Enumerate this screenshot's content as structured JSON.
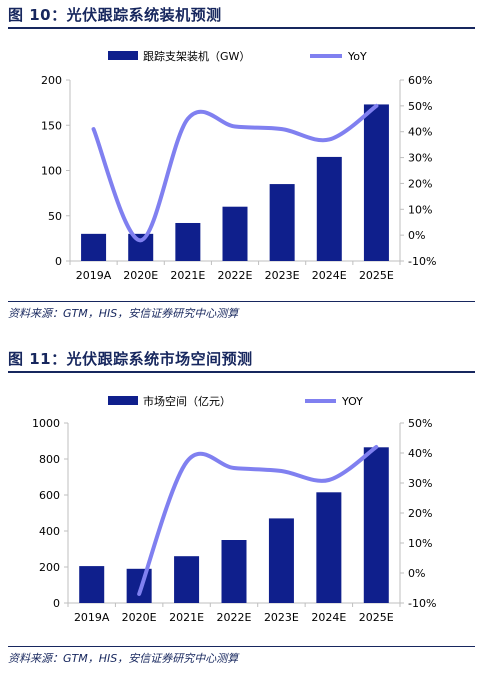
{
  "figures": [
    {
      "title": "图 10：光伏跟踪系统装机预测",
      "source": "资料来源：GTM，HIS，安信证券研究中心测算",
      "chart_data": {
        "type": "bar",
        "categories": [
          "2019A",
          "2020E",
          "2021E",
          "2022E",
          "2023E",
          "2024E",
          "2025E"
        ],
        "series": [
          {
            "name": "跟踪支架装机（GW）",
            "type": "bar",
            "axis": "left",
            "values": [
              30,
              30,
              42,
              60,
              85,
              115,
              173
            ]
          },
          {
            "name": "YoY",
            "type": "line",
            "axis": "right",
            "values": [
              0.41,
              -0.02,
              0.45,
              0.42,
              0.41,
              0.37,
              0.5
            ]
          }
        ],
        "y_left": {
          "min": 0,
          "max": 200,
          "ticks": [
            "0",
            "50",
            "100",
            "150",
            "200"
          ]
        },
        "y_right": {
          "min": -0.1,
          "max": 0.6,
          "ticks": [
            "-10%",
            "0%",
            "10%",
            "20%",
            "30%",
            "40%",
            "50%",
            "60%"
          ]
        },
        "grid": false,
        "legend": "top"
      }
    },
    {
      "title": "图 11：光伏跟踪系统市场空间预测",
      "source": "资料来源：GTM，HIS，安信证券研究中心测算",
      "chart_data": {
        "type": "bar",
        "categories": [
          "2019A",
          "2020E",
          "2021E",
          "2022E",
          "2023E",
          "2024E",
          "2025E"
        ],
        "series": [
          {
            "name": "市场空间（亿元）",
            "type": "bar",
            "axis": "left",
            "values": [
              205,
              190,
              260,
              350,
              470,
              615,
              865
            ]
          },
          {
            "name": "YOY",
            "type": "line",
            "axis": "right",
            "values": [
              null,
              -0.07,
              0.37,
              0.35,
              0.34,
              0.31,
              0.42
            ]
          }
        ],
        "y_left": {
          "min": 0,
          "max": 1000,
          "ticks": [
            "0",
            "200",
            "400",
            "600",
            "800",
            "1000"
          ]
        },
        "y_right": {
          "min": -0.1,
          "max": 0.5,
          "ticks": [
            "-10%",
            "0%",
            "10%",
            "20%",
            "30%",
            "40%",
            "50%"
          ]
        },
        "grid": false,
        "legend": "top"
      }
    }
  ],
  "colors": {
    "bar": "#0f1f8c",
    "line": "#8080f0",
    "axis": "#bfbfbf",
    "text": "#000000",
    "title": "#17275e"
  }
}
